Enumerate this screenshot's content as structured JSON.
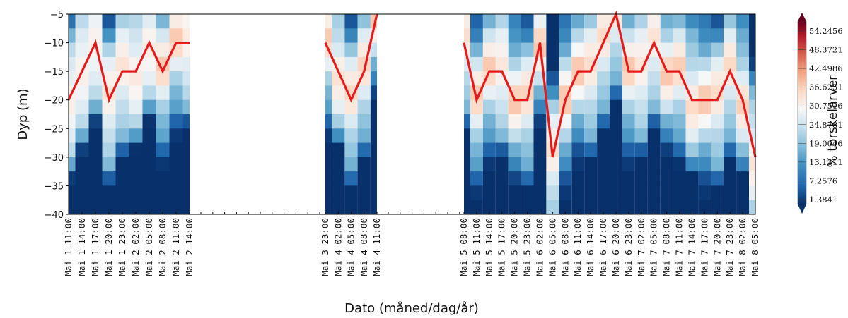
{
  "chart_data": {
    "type": "heatmap",
    "title": "",
    "xlabel": "Dato (måned/dag/år)",
    "ylabel": "Dyp (m)",
    "colorbar_label": "% torskelarver",
    "colorbar_ticks": [
      "54.2456",
      "48.3721",
      "42.4986",
      "36.6251",
      "30.7516",
      "24.8781",
      "19.0046",
      "13.1311",
      "7.2576",
      "1.3841"
    ],
    "colorbar_range": [
      1.3841,
      54.2456
    ],
    "colormap": [
      "#08306b",
      "#2166ac",
      "#4393c3",
      "#92c5de",
      "#d1e5f0",
      "#f7f7f7",
      "#fddbc7",
      "#f4a582",
      "#d6604d",
      "#b2182b",
      "#67001f"
    ],
    "line_color": "#e41a1c",
    "ylim": [
      -40,
      -5
    ],
    "y_ticks": [
      "−5",
      "−10",
      "−15",
      "−20",
      "−25",
      "−30",
      "−35",
      "−40"
    ],
    "x_tick_labels": {
      "segment1": [
        "Mai 1 11:00",
        "Mai 1 14:00",
        "Mai 1 17:00",
        "Mai 1 20:00",
        "Mai 1 23:00",
        "Mai 2 02:00",
        "Mai 2 05:00",
        "Mai 2 08:00",
        "Mai 2 11:00",
        "Mai 2 14:00"
      ],
      "segment2": [
        "Mai 3 23:00",
        "Mai 4 02:00",
        "Mai 4 05:00",
        "Mai 4 08:00",
        "Mai 4 11:00"
      ],
      "segment3": [
        "Mai 5 08:00",
        "Mai 5 11:00",
        "Mai 5 14:00",
        "Mai 5 17:00",
        "Mai 5 20:00",
        "Mai 5 23:00",
        "Mai 6 02:00",
        "Mai 6 05:00",
        "Mai 6 08:00",
        "Mai 6 11:00",
        "Mai 6 14:00",
        "Mai 6 17:00",
        "Mai 6 20:00",
        "Mai 6 23:00",
        "Mai 7 02:00",
        "Mai 7 05:00",
        "Mai 7 08:00",
        "Mai 7 11:00",
        "Mai 7 14:00",
        "Mai 7 17:00",
        "Mai 7 20:00",
        "Mai 7 23:00",
        "Mai 8 02:00",
        "Mai 8 05:00"
      ]
    },
    "segments": [
      {
        "times": [
          "Mai 1 11:00",
          "Mai 1 14:00",
          "Mai 1 17:00",
          "Mai 1 20:00",
          "Mai 1 23:00",
          "Mai 2 02:00",
          "Mai 2 05:00",
          "Mai 2 08:00",
          "Mai 2 11:00",
          "Mai 2 14:00"
        ],
        "max_depth_line": [
          -20,
          -15,
          -10,
          -20,
          -15,
          -15,
          -10,
          -15,
          -10,
          -10
        ]
      },
      {
        "times": [
          "Mai 3 23:00",
          "Mai 4 02:00",
          "Mai 4 05:00",
          "Mai 4 08:00",
          "Mai 4 11:00"
        ],
        "max_depth_line": [
          -10,
          -15,
          -20,
          -15,
          -5
        ]
      },
      {
        "times": [
          "Mai 5 08:00",
          "Mai 5 11:00",
          "Mai 5 14:00",
          "Mai 5 17:00",
          "Mai 5 20:00",
          "Mai 5 23:00",
          "Mai 6 02:00",
          "Mai 6 05:00",
          "Mai 6 08:00",
          "Mai 6 11:00",
          "Mai 6 14:00",
          "Mai 6 17:00",
          "Mai 6 20:00",
          "Mai 6 23:00",
          "Mai 7 02:00",
          "Mai 7 05:00",
          "Mai 7 08:00",
          "Mai 7 11:00",
          "Mai 7 14:00",
          "Mai 7 17:00",
          "Mai 7 20:00",
          "Mai 7 23:00",
          "Mai 8 02:00",
          "Mai 8 05:00"
        ],
        "max_depth_line": [
          -10,
          -20,
          -15,
          -15,
          -20,
          -20,
          -10,
          -30,
          -20,
          -15,
          -15,
          -10,
          -5,
          -15,
          -15,
          -10,
          -15,
          -15,
          -20,
          -20,
          -20,
          -15,
          -20,
          -30
        ]
      }
    ]
  }
}
